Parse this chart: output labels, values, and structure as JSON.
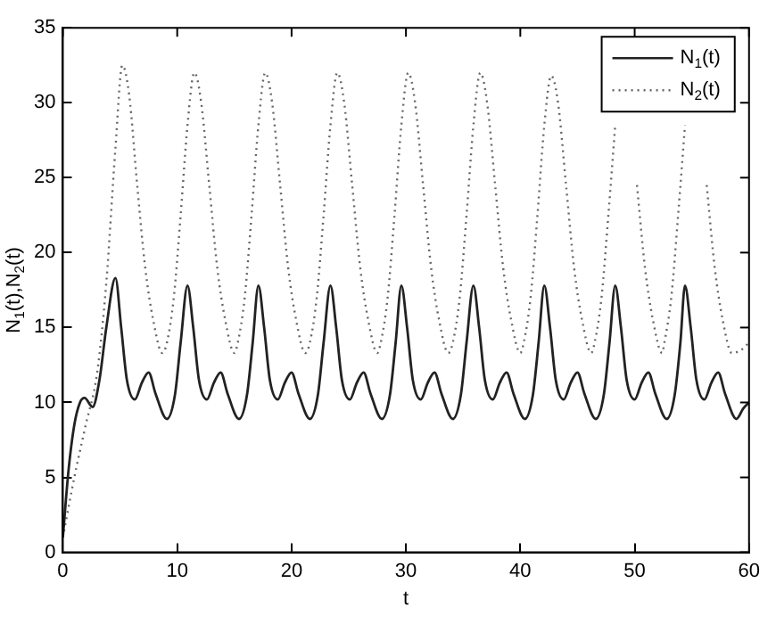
{
  "chart_data": {
    "type": "line",
    "xlabel": "t",
    "ylabel": "N$_{1}$(t),N$_{2}$(t)",
    "xlim": [
      0,
      60
    ],
    "ylim": [
      0,
      35
    ],
    "xticks": [
      0,
      10,
      20,
      30,
      40,
      50,
      60
    ],
    "yticks": [
      0,
      5,
      10,
      15,
      20,
      25,
      30,
      35
    ],
    "grid": false,
    "legend": "top right",
    "marker": "none",
    "series": [
      {
        "name": "N$_{1}$(t)",
        "color": "#222222",
        "line_style": "solid",
        "x": [
          0,
          0.5,
          1,
          1.5,
          1.9,
          2.6,
          3.2,
          3.8,
          4.6,
          5.1,
          5.6,
          6.3,
          6.9,
          7.5,
          8.1,
          9.1,
          9.8,
          10.3,
          10.9,
          11.4,
          11.9,
          12.6,
          13.2,
          13.8,
          14.4,
          15.4,
          16.1,
          16.6,
          17.1,
          17.6,
          18.1,
          18.8,
          19.4,
          20,
          20.6,
          21.6,
          22.3,
          22.8,
          23.4,
          23.9,
          24.4,
          25.1,
          25.7,
          26.3,
          26.9,
          27.9,
          28.6,
          29.1,
          29.6,
          30.1,
          30.6,
          31.3,
          31.9,
          32.5,
          33.1,
          34.1,
          34.8,
          35.3,
          35.9,
          36.4,
          36.9,
          37.6,
          38.2,
          38.8,
          39.4,
          40.4,
          41.1,
          41.6,
          42.1,
          42.6,
          43.1,
          43.8,
          44.4,
          45,
          45.6,
          46.6,
          47.3,
          47.8,
          48.3,
          48.8,
          49.3,
          50,
          50.6,
          51.2,
          51.8,
          52.8,
          53.5,
          54,
          54.4,
          54.9,
          55.4,
          56.1,
          56.7,
          57.3,
          57.9,
          58.9,
          59.5,
          60
        ],
        "values": [
          1,
          5.5,
          8.5,
          10,
          10.3,
          9.7,
          11.5,
          15,
          18.3,
          15,
          11.5,
          10.2,
          11.3,
          12,
          10.6,
          8.9,
          10.5,
          14,
          17.8,
          15,
          11.5,
          10.2,
          11.3,
          12,
          10.6,
          8.9,
          10.5,
          14,
          17.8,
          15,
          11.5,
          10.2,
          11.3,
          12,
          10.6,
          8.9,
          10.5,
          14,
          17.8,
          15,
          11.5,
          10.2,
          11.3,
          12,
          10.6,
          8.9,
          10.5,
          14,
          17.8,
          15,
          11.5,
          10.2,
          11.3,
          12,
          10.6,
          8.9,
          10.5,
          14,
          17.8,
          15,
          11.5,
          10.2,
          11.3,
          12,
          10.6,
          8.9,
          10.5,
          14,
          17.8,
          15,
          11.5,
          10.2,
          11.3,
          12,
          10.6,
          8.9,
          10.5,
          14,
          17.8,
          15,
          11.5,
          10.2,
          11.3,
          12,
          10.6,
          8.9,
          10.5,
          14,
          17.8,
          15,
          11.5,
          10.2,
          11.3,
          12,
          10.6,
          8.9,
          9.6,
          10
        ]
      },
      {
        "name": "N$_{2}$(t)",
        "color": "#666666",
        "line_style": "dotted",
        "x": [
          0,
          1,
          2,
          3,
          3.8,
          4.6,
          5.2,
          5.8,
          6.5,
          7.2,
          7.9,
          8.7,
          9.1,
          9.7,
          10.3,
          10.9,
          11.5,
          12.1,
          12.8,
          13.5,
          14.2,
          15,
          15.3,
          15.9,
          16.5,
          17.1,
          17.7,
          18.3,
          19,
          19.7,
          20.4,
          21.2,
          21.6,
          22.2,
          22.8,
          23.4,
          24,
          24.6,
          25.3,
          26,
          26.7,
          27.5,
          27.8,
          28.4,
          29,
          29.6,
          30.2,
          30.8,
          31.5,
          32.2,
          32.9,
          33.7,
          34.1,
          34.7,
          35.3,
          35.9,
          36.5,
          37.1,
          37.8,
          38.5,
          39.2,
          40,
          40.3,
          40.9,
          41.5,
          42.1,
          42.7,
          43.3,
          44,
          44.7,
          45.4,
          46.2,
          46.5,
          47.1,
          47.7,
          48.3,
          48.9,
          49.5,
          50.2,
          50.9,
          51.6,
          52.4,
          52.6,
          53.2,
          53.8,
          54.4,
          55,
          55.6,
          56.3,
          57,
          57.7,
          58.5,
          59.3,
          60
        ],
        "values": [
          1,
          5,
          8.5,
          12,
          18,
          27,
          32.5,
          30.5,
          24.5,
          19,
          15.5,
          13.3,
          14,
          17,
          22.5,
          28.5,
          32,
          30,
          24.5,
          19,
          15.5,
          13.3,
          14,
          17,
          22.5,
          28.5,
          32,
          30,
          24.5,
          19,
          15.5,
          13.3,
          14,
          17,
          22.5,
          28.5,
          32,
          30,
          24.5,
          19,
          15.5,
          13.3,
          14,
          17,
          22.5,
          28.5,
          32,
          30,
          24.5,
          19,
          15.5,
          13.3,
          14,
          17,
          22.5,
          28.5,
          32,
          30,
          24.5,
          19,
          15.5,
          13.3,
          14,
          17,
          22.5,
          28.5,
          31.8,
          30,
          24.5,
          19,
          15.5,
          13.3,
          14,
          17,
          22.5,
          28.5,
          null,
          null,
          24.5,
          19,
          15.5,
          13.3,
          14,
          17,
          22.5,
          28.5,
          null,
          null,
          24.5,
          19,
          15.5,
          13.3,
          13.5,
          14
        ]
      }
    ]
  }
}
